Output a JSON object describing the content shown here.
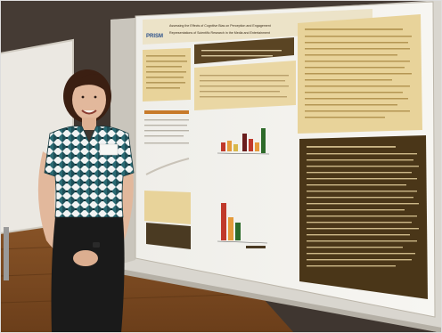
{
  "photo": {
    "poster": {
      "logo": "PRISM",
      "title_lines": [
        "Assessing the Effects of Cognitive Bias on Perception and Engagement",
        "Representations of Scientific Research in the Media and Entertainment"
      ],
      "chart_series_colors": [
        "#c0392b",
        "#e59a3a",
        "#d9b84a",
        "#2e6b2a",
        "#6a1d1d"
      ]
    },
    "palette": {
      "wall": "#3a322c",
      "board_border": "#cfcac0",
      "floor": "#7a4a22",
      "poster_accent": "#6b4a22",
      "poster_tan": "#e8d39a",
      "top_pattern": "#1f4f58",
      "pants": "#1a1a1a",
      "hair": "#3b1f12"
    }
  }
}
